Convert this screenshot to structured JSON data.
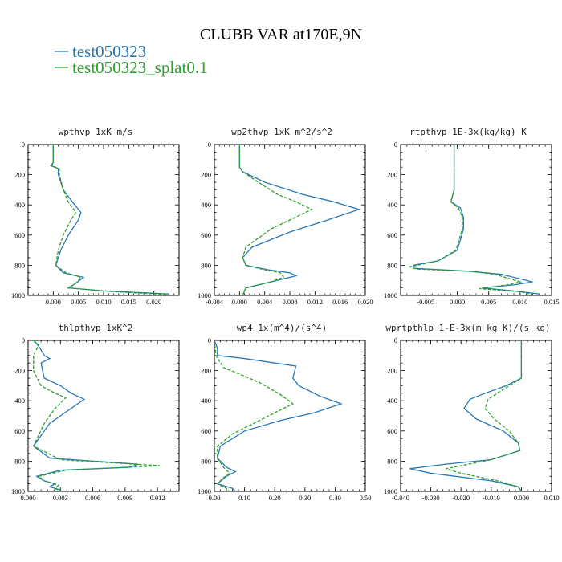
{
  "title": "CLUBB VAR at170E,9N",
  "colors": {
    "series0": "#2878b5",
    "series1": "#2ca02c"
  },
  "legend": [
    {
      "name": "test050323",
      "color": "#2878b5",
      "dash": "solid"
    },
    {
      "name": "test050323_splat0.1",
      "color": "#2ca02c",
      "dash": "dashed"
    }
  ],
  "chart_data": [
    {
      "type": "line",
      "title": "wpthvp  1xK m/s",
      "xlim": [
        -0.005,
        0.025
      ],
      "ylim": [
        1000,
        0
      ],
      "xticks": [
        0.0,
        0.005,
        0.01,
        0.015,
        0.02
      ],
      "xtick_labels": [
        "0.000",
        "0.005",
        "0.010",
        "0.015",
        "0.020"
      ],
      "yticks": [
        0,
        200,
        400,
        600,
        800,
        1000
      ],
      "series": [
        {
          "values": [
            [
              0,
              0
            ],
            [
              0,
              120
            ],
            [
              -0.0005,
              140
            ],
            [
              0.001,
              160
            ],
            [
              0.001,
              200
            ],
            [
              0.002,
              300
            ],
            [
              0.0038,
              380
            ],
            [
              0.0055,
              450
            ],
            [
              0.005,
              500
            ],
            [
              0.003,
              600
            ],
            [
              0.0015,
              700
            ],
            [
              0.0005,
              800
            ],
            [
              0.002,
              850
            ],
            [
              0.006,
              880
            ],
            [
              0.0045,
              920
            ],
            [
              0.003,
              950
            ],
            [
              0.01,
              970
            ],
            [
              0.023,
              990
            ]
          ]
        },
        {
          "values": [
            [
              0,
              0
            ],
            [
              0,
              120
            ],
            [
              -0.0003,
              140
            ],
            [
              0.0012,
              160
            ],
            [
              0.0012,
              200
            ],
            [
              0.002,
              300
            ],
            [
              0.003,
              380
            ],
            [
              0.0045,
              450
            ],
            [
              0.0035,
              500
            ],
            [
              0.002,
              600
            ],
            [
              0.001,
              700
            ],
            [
              0.0005,
              800
            ],
            [
              0.0025,
              850
            ],
            [
              0.0055,
              880
            ],
            [
              0.0045,
              920
            ],
            [
              0.003,
              950
            ],
            [
              0.012,
              975
            ],
            [
              0.023,
              995
            ]
          ]
        }
      ]
    },
    {
      "type": "line",
      "title": "wp2thvp  1xK m^2/s^2",
      "xlim": [
        -0.004,
        0.02
      ],
      "ylim": [
        1000,
        0
      ],
      "xticks": [
        -0.004,
        0.0,
        0.004,
        0.008,
        0.012,
        0.016,
        0.02
      ],
      "xtick_labels": [
        "-0.004",
        "0.000",
        "0.004",
        "0.008",
        "0.012",
        "0.016",
        "0.020"
      ],
      "yticks": [
        0,
        200,
        400,
        600,
        800,
        1000
      ],
      "series": [
        {
          "values": [
            [
              0,
              0
            ],
            [
              0,
              150
            ],
            [
              0.0005,
              180
            ],
            [
              0.004,
              250
            ],
            [
              0.01,
              330
            ],
            [
              0.015,
              380
            ],
            [
              0.019,
              430
            ],
            [
              0.014,
              500
            ],
            [
              0.008,
              580
            ],
            [
              0.002,
              680
            ],
            [
              0.0005,
              750
            ],
            [
              0.001,
              800
            ],
            [
              0.0045,
              830
            ],
            [
              0.008,
              850
            ],
            [
              0.009,
              870
            ],
            [
              0.006,
              900
            ],
            [
              0.001,
              950
            ],
            [
              0.0005,
              1000
            ]
          ]
        },
        {
          "values": [
            [
              0,
              0
            ],
            [
              0,
              150
            ],
            [
              0.0005,
              180
            ],
            [
              0.003,
              250
            ],
            [
              0.006,
              330
            ],
            [
              0.009,
              380
            ],
            [
              0.0115,
              430
            ],
            [
              0.009,
              480
            ],
            [
              0.005,
              560
            ],
            [
              0.001,
              680
            ],
            [
              0.0005,
              750
            ],
            [
              0.001,
              800
            ],
            [
              0.004,
              830
            ],
            [
              0.0065,
              850
            ],
            [
              0.007,
              880
            ],
            [
              0.005,
              910
            ],
            [
              0.001,
              950
            ],
            [
              0.0005,
              1000
            ]
          ]
        }
      ]
    },
    {
      "type": "line",
      "title": "rtpthvp  1E-3x(kg/kg) K",
      "xlim": [
        -0.009,
        0.015
      ],
      "ylim": [
        1000,
        0
      ],
      "xticks": [
        -0.005,
        0.0,
        0.005,
        0.01,
        0.015
      ],
      "xtick_labels": [
        "-0.005",
        "0.000",
        "0.005",
        "0.010",
        "0.015"
      ],
      "yticks": [
        0,
        200,
        400,
        600,
        800,
        1000
      ],
      "series": [
        {
          "values": [
            [
              -0.0005,
              0
            ],
            [
              -0.0005,
              200
            ],
            [
              -0.0005,
              300
            ],
            [
              -0.001,
              380
            ],
            [
              0.0005,
              420
            ],
            [
              0.001,
              480
            ],
            [
              0.001,
              560
            ],
            [
              0,
              700
            ],
            [
              -0.003,
              770
            ],
            [
              -0.007,
              800
            ],
            [
              -0.007,
              820
            ],
            [
              0.002,
              840
            ],
            [
              0.007,
              860
            ],
            [
              0.012,
              910
            ],
            [
              0.009,
              930
            ],
            [
              0.004,
              950
            ],
            [
              0.009,
              970
            ],
            [
              0.013,
              990
            ]
          ]
        },
        {
          "values": [
            [
              -0.0005,
              0
            ],
            [
              -0.0005,
              200
            ],
            [
              -0.0005,
              300
            ],
            [
              -0.001,
              380
            ],
            [
              0.0002,
              420
            ],
            [
              0.0008,
              480
            ],
            [
              0.0008,
              560
            ],
            [
              -0.0002,
              700
            ],
            [
              -0.003,
              770
            ],
            [
              -0.0075,
              810
            ],
            [
              -0.0065,
              825
            ],
            [
              0.002,
              840
            ],
            [
              0.006,
              860
            ],
            [
              0.01,
              910
            ],
            [
              0.008,
              930
            ],
            [
              0.0035,
              955
            ],
            [
              0.01,
              975
            ],
            [
              0.012,
              995
            ]
          ]
        }
      ]
    },
    {
      "type": "line",
      "title": "thlpthvp  1xK^2",
      "xlim": [
        0.0,
        0.014
      ],
      "ylim": [
        1000,
        0
      ],
      "xticks": [
        0.0,
        0.003,
        0.006,
        0.009,
        0.012
      ],
      "xtick_labels": [
        "0.000",
        "0.003",
        "0.006",
        "0.009",
        "0.012"
      ],
      "yticks": [
        0,
        200,
        400,
        600,
        800,
        1000
      ],
      "series": [
        {
          "values": [
            [
              0.0005,
              0
            ],
            [
              0.001,
              40
            ],
            [
              0.0015,
              100
            ],
            [
              0.002,
              120
            ],
            [
              0.0012,
              150
            ],
            [
              0.0015,
              250
            ],
            [
              0.003,
              300
            ],
            [
              0.004,
              350
            ],
            [
              0.0052,
              390
            ],
            [
              0.004,
              450
            ],
            [
              0.002,
              550
            ],
            [
              0.0005,
              700
            ],
            [
              0.002,
              780
            ],
            [
              0.0102,
              820
            ],
            [
              0.0095,
              840
            ],
            [
              0.003,
              860
            ],
            [
              0.0008,
              900
            ],
            [
              0.0015,
              930
            ],
            [
              0.0025,
              950
            ],
            [
              0.002,
              970
            ],
            [
              0.003,
              990
            ]
          ]
        },
        {
          "values": [
            [
              0.0005,
              0
            ],
            [
              0.001,
              30
            ],
            [
              0.0005,
              100
            ],
            [
              0.0005,
              200
            ],
            [
              0.0012,
              300
            ],
            [
              0.0025,
              350
            ],
            [
              0.0035,
              380
            ],
            [
              0.0025,
              450
            ],
            [
              0.0015,
              550
            ],
            [
              0.0005,
              700
            ],
            [
              0.003,
              790
            ],
            [
              0.0122,
              830
            ],
            [
              0.0035,
              860
            ],
            [
              0.001,
              900
            ],
            [
              0.0015,
              930
            ],
            [
              0.0028,
              960
            ],
            [
              0.0025,
              980
            ],
            [
              0.003,
              1000
            ]
          ]
        }
      ]
    },
    {
      "type": "line",
      "title": "wp4  1x(m^4)/(s^4)",
      "xlim": [
        0.0,
        0.5
      ],
      "ylim": [
        1000,
        0
      ],
      "xticks": [
        0.0,
        0.1,
        0.2,
        0.3,
        0.4,
        0.5
      ],
      "xtick_labels": [
        "0.00",
        "0.10",
        "0.20",
        "0.30",
        "0.40",
        "0.50"
      ],
      "yticks": [
        0,
        200,
        400,
        600,
        800,
        1000
      ],
      "series": [
        {
          "values": [
            [
              0,
              0
            ],
            [
              0.01,
              50
            ],
            [
              0.01,
              100
            ],
            [
              0.1,
              120
            ],
            [
              0.2,
              150
            ],
            [
              0.27,
              170
            ],
            [
              0.26,
              250
            ],
            [
              0.28,
              300
            ],
            [
              0.35,
              370
            ],
            [
              0.42,
              420
            ],
            [
              0.33,
              480
            ],
            [
              0.22,
              530
            ],
            [
              0.1,
              600
            ],
            [
              0.02,
              700
            ],
            [
              0.01,
              780
            ],
            [
              0.04,
              840
            ],
            [
              0.07,
              870
            ],
            [
              0.04,
              900
            ],
            [
              0.01,
              950
            ],
            [
              0.06,
              980
            ],
            [
              0.07,
              1000
            ]
          ]
        },
        {
          "values": [
            [
              0,
              0
            ],
            [
              0.005,
              100
            ],
            [
              0.03,
              180
            ],
            [
              0.08,
              220
            ],
            [
              0.15,
              280
            ],
            [
              0.22,
              360
            ],
            [
              0.26,
              420
            ],
            [
              0.2,
              480
            ],
            [
              0.14,
              540
            ],
            [
              0.06,
              620
            ],
            [
              0.01,
              700
            ],
            [
              0.01,
              780
            ],
            [
              0.03,
              840
            ],
            [
              0.05,
              880
            ],
            [
              0.03,
              910
            ],
            [
              0.01,
              950
            ],
            [
              0.04,
              980
            ],
            [
              0.05,
              1000
            ]
          ]
        }
      ]
    },
    {
      "type": "line",
      "title": "wprtpthlp  1-E-3x(m kg K)/(s kg)",
      "xlim": [
        -0.04,
        0.01
      ],
      "ylim": [
        1000,
        0
      ],
      "xticks": [
        -0.04,
        -0.03,
        -0.02,
        -0.01,
        0.0,
        0.01
      ],
      "xtick_labels": [
        "-0.040",
        "-0.030",
        "-0.020",
        "-0.010",
        "0.000",
        "0.010"
      ],
      "yticks": [
        0,
        200,
        400,
        600,
        800,
        1000
      ],
      "series": [
        {
          "values": [
            [
              0,
              0
            ],
            [
              0,
              150
            ],
            [
              0,
              250
            ],
            [
              -0.005,
              300
            ],
            [
              -0.012,
              350
            ],
            [
              -0.017,
              390
            ],
            [
              -0.019,
              450
            ],
            [
              -0.015,
              520
            ],
            [
              -0.006,
              600
            ],
            [
              -0.001,
              680
            ],
            [
              -0.0005,
              730
            ],
            [
              -0.01,
              790
            ],
            [
              -0.025,
              820
            ],
            [
              -0.037,
              850
            ],
            [
              -0.03,
              880
            ],
            [
              -0.01,
              930
            ],
            [
              -0.001,
              970
            ],
            [
              0,
              1000
            ]
          ]
        },
        {
          "values": [
            [
              0,
              0
            ],
            [
              0,
              150
            ],
            [
              0,
              250
            ],
            [
              -0.004,
              300
            ],
            [
              -0.008,
              350
            ],
            [
              -0.011,
              390
            ],
            [
              -0.012,
              450
            ],
            [
              -0.009,
              520
            ],
            [
              -0.004,
              600
            ],
            [
              -0.001,
              680
            ],
            [
              -0.0005,
              730
            ],
            [
              -0.01,
              790
            ],
            [
              -0.02,
              830
            ],
            [
              -0.025,
              850
            ],
            [
              -0.02,
              880
            ],
            [
              -0.008,
              930
            ],
            [
              -0.001,
              970
            ],
            [
              0,
              1000
            ]
          ]
        }
      ]
    }
  ]
}
